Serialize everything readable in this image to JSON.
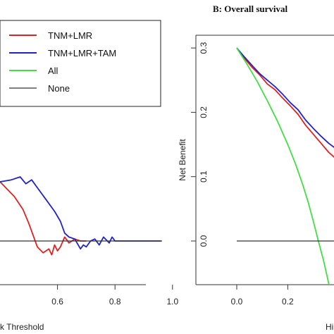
{
  "chart_data": [
    {
      "type": "line",
      "panel": "left",
      "title": "",
      "xlabel": "k Threshold",
      "ylabel": "",
      "xlim": [
        0.4,
        1.0
      ],
      "x_ticks": [
        "0.6",
        "0.8",
        "1.0"
      ],
      "legend": {
        "placement": "top-left",
        "entries": [
          {
            "label": "TNM+LMR",
            "color": "#dd2222"
          },
          {
            "label": "TNM+LMR+TAM",
            "color": "#2222cc"
          },
          {
            "label": "All",
            "color": "#44dd44"
          },
          {
            "label": "None",
            "color": "#333333"
          }
        ]
      },
      "series": [
        {
          "name": "TNM+LMR",
          "color": "#dd2222",
          "points": [
            [
              0.4,
              0.06
            ],
            [
              0.45,
              0.045
            ],
            [
              0.48,
              0.032
            ],
            [
              0.5,
              0.018
            ],
            [
              0.53,
              -0.006
            ],
            [
              0.55,
              -0.012
            ],
            [
              0.57,
              -0.008
            ],
            [
              0.58,
              -0.014
            ],
            [
              0.59,
              -0.004
            ],
            [
              0.6,
              -0.01
            ],
            [
              0.61,
              -0.006
            ],
            [
              0.625,
              0.004
            ],
            [
              0.64,
              -0.002
            ],
            [
              0.66,
              0.002
            ],
            [
              0.68,
              0.0
            ],
            [
              0.7,
              0.0
            ]
          ]
        },
        {
          "name": "TNM+LMR+TAM",
          "color": "#2222cc",
          "points": [
            [
              0.4,
              0.06
            ],
            [
              0.44,
              0.062
            ],
            [
              0.47,
              0.065
            ],
            [
              0.49,
              0.058
            ],
            [
              0.51,
              0.062
            ],
            [
              0.53,
              0.054
            ],
            [
              0.56,
              0.042
            ],
            [
              0.59,
              0.03
            ],
            [
              0.61,
              0.02
            ],
            [
              0.625,
              0.008
            ],
            [
              0.64,
              0.004
            ],
            [
              0.66,
              0.002
            ],
            [
              0.68,
              -0.008
            ],
            [
              0.69,
              -0.004
            ],
            [
              0.7,
              -0.006
            ],
            [
              0.715,
              0.0
            ],
            [
              0.73,
              0.002
            ],
            [
              0.745,
              -0.004
            ],
            [
              0.76,
              0.004
            ],
            [
              0.78,
              -0.002
            ],
            [
              0.79,
              0.004
            ],
            [
              0.8,
              0.0
            ],
            [
              0.96,
              0.0
            ]
          ]
        },
        {
          "name": "None",
          "color": "#333333",
          "points": [
            [
              0.4,
              0.0
            ],
            [
              1.0,
              0.0
            ]
          ]
        }
      ]
    },
    {
      "type": "line",
      "panel": "right",
      "title": "B: Overall survival",
      "xlabel": "Hi",
      "ylabel": "Net Benefit",
      "xlim": [
        0.0,
        0.52
      ],
      "ylim": [
        -0.06,
        0.32
      ],
      "x_ticks": [
        "0.0",
        "0.2"
      ],
      "y_ticks": [
        "0.0",
        "0.1",
        "0.2",
        "0.3"
      ],
      "series": [
        {
          "name": "TNM+LMR",
          "color": "#dd2222",
          "points": [
            [
              0.0,
              0.3
            ],
            [
              0.03,
              0.284
            ],
            [
              0.06,
              0.27
            ],
            [
              0.09,
              0.258
            ],
            [
              0.12,
              0.244
            ],
            [
              0.15,
              0.235
            ],
            [
              0.18,
              0.222
            ],
            [
              0.21,
              0.21
            ],
            [
              0.24,
              0.197
            ],
            [
              0.27,
              0.18
            ],
            [
              0.3,
              0.166
            ],
            [
              0.33,
              0.152
            ],
            [
              0.36,
              0.138
            ],
            [
              0.4,
              0.124
            ],
            [
              0.44,
              0.112
            ],
            [
              0.48,
              0.1
            ],
            [
              0.52,
              0.09
            ]
          ]
        },
        {
          "name": "TNM+LMR+TAM",
          "color": "#2222cc",
          "points": [
            [
              0.0,
              0.3
            ],
            [
              0.03,
              0.286
            ],
            [
              0.06,
              0.273
            ],
            [
              0.09,
              0.26
            ],
            [
              0.12,
              0.25
            ],
            [
              0.15,
              0.24
            ],
            [
              0.18,
              0.228
            ],
            [
              0.21,
              0.215
            ],
            [
              0.24,
              0.204
            ],
            [
              0.27,
              0.188
            ],
            [
              0.3,
              0.175
            ],
            [
              0.33,
              0.163
            ],
            [
              0.36,
              0.152
            ],
            [
              0.4,
              0.14
            ],
            [
              0.44,
              0.131
            ],
            [
              0.48,
              0.122
            ],
            [
              0.52,
              0.114
            ]
          ]
        },
        {
          "name": "All",
          "color": "#44dd44",
          "points": [
            [
              0.0,
              0.3
            ],
            [
              0.04,
              0.275
            ],
            [
              0.08,
              0.248
            ],
            [
              0.12,
              0.218
            ],
            [
              0.16,
              0.186
            ],
            [
              0.2,
              0.15
            ],
            [
              0.23,
              0.12
            ],
            [
              0.26,
              0.086
            ],
            [
              0.28,
              0.06
            ],
            [
              0.3,
              0.031
            ],
            [
              0.32,
              0.0
            ],
            [
              0.34,
              -0.03
            ],
            [
              0.36,
              -0.065
            ],
            [
              0.38,
              -0.102
            ]
          ]
        },
        {
          "name": "None",
          "color": "#333333",
          "points": [
            [
              0.0,
              0.0
            ],
            [
              0.52,
              0.0
            ]
          ]
        }
      ]
    }
  ]
}
